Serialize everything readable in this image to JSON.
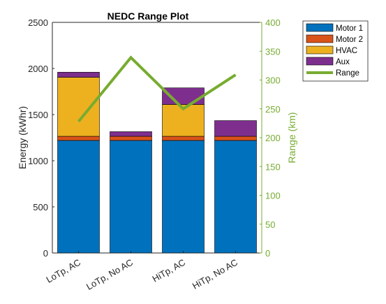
{
  "chart_data": {
    "type": "bar",
    "stacked": true,
    "title": "NEDC Range Plot",
    "categories": [
      "LoTp, AC",
      "LoTp, No AC",
      "HiTp, AC",
      "HiTp, No AC"
    ],
    "series": [
      {
        "name": "Motor 1",
        "values": [
          1220,
          1220,
          1220,
          1220
        ],
        "color": "#0072BD"
      },
      {
        "name": "Motor 2",
        "values": [
          45,
          45,
          45,
          45
        ],
        "color": "#D95319"
      },
      {
        "name": "HVAC",
        "values": [
          640,
          0,
          345,
          0
        ],
        "color": "#EDB120"
      },
      {
        "name": "Aux",
        "values": [
          55,
          50,
          180,
          170
        ],
        "color": "#7E2F8E"
      }
    ],
    "line_series": {
      "name": "Range",
      "values": [
        228,
        339,
        250,
        309
      ],
      "color": "#77AC30",
      "axis": "right"
    },
    "ylabel": "Energy (kWhr)",
    "ylabel_right": "Range (km)",
    "ylim": [
      0,
      2500
    ],
    "ylim_right": [
      0,
      400
    ],
    "yticks": [
      0,
      500,
      1000,
      1500,
      2000,
      2500
    ],
    "yticks_right": [
      0,
      50,
      100,
      150,
      200,
      250,
      300,
      350,
      400
    ],
    "grid": false,
    "legend_position": "outside-top-right"
  }
}
